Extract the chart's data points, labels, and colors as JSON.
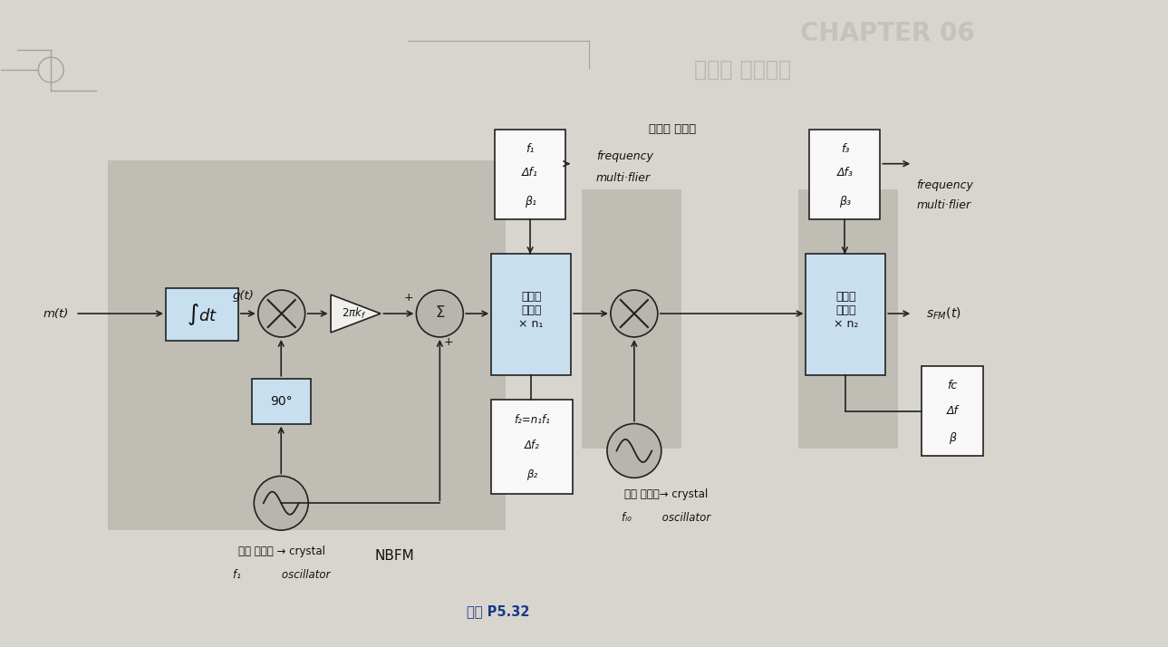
{
  "bg_color": "#d8d5ce",
  "shaded_fc": "#c0bdb5",
  "box_fc": "#c8dff0",
  "white_fc": "#f8f8f8",
  "circle_fc": "#b8b5ae",
  "tri_fc": "#f0f0ec",
  "title": "CHAPTER 06",
  "subtitle": "신호와 프로세스",
  "caption": "그림 P5.32",
  "nbfm": "NBFM",
  "freq_conv": "주파수 변환기",
  "fm_mult1_line1": "frequency",
  "fm_mult1_line2": "multi·flier",
  "fm_mult2_line1": "frequency",
  "fm_mult2_line2": "multi·flier",
  "crystal1_line1": "수정 발진기 → crystal",
  "crystal1_line2": "f₁            oscillator",
  "crystal2_line1": "수정 발진기→ crystal",
  "crystal2_line2": "fₗ₀         oscillator",
  "mt": "m(t)",
  "gt": "g(t)",
  "sfmt": "s",
  "ib1_line1": "f₁",
  "ib1_line2": "Δf₁",
  "ib1_line3": "β₁",
  "ib2_line1": "f₂=n₁f₁",
  "ib2_line2": "Δf₂",
  "ib2_line3": "β₂",
  "ib3_line1": "f₃",
  "ib3_line2": "Δf₃",
  "ib3_line3": "β₃",
  "ib4_line1": "fᴄ",
  "ib4_line2": "Δf",
  "ib4_line3": "β",
  "fm1_text": "주파수\n체배기\n× n₁",
  "fm2_text": "주파수\n체배기\n× n₂",
  "deg90": "90°",
  "int_text": "∯dt",
  "gain_text": "2πkf"
}
